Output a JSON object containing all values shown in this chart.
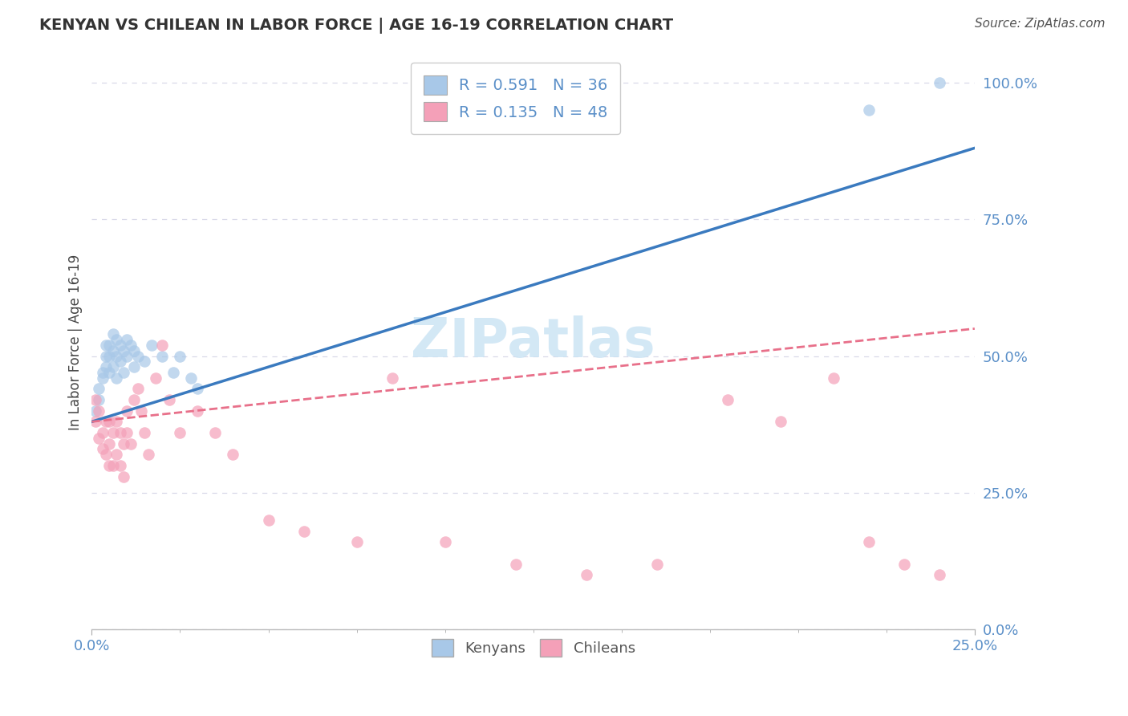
{
  "title": "KENYAN VS CHILEAN IN LABOR FORCE | AGE 16-19 CORRELATION CHART",
  "source_text": "Source: ZipAtlas.com",
  "ylabel": "In Labor Force | Age 16-19",
  "kenyan_color": "#a8c8e8",
  "chilean_color": "#f4a0b8",
  "kenyan_line_color": "#3a7abf",
  "chilean_line_color": "#e8708a",
  "background_color": "#ffffff",
  "tick_color": "#5a8fc8",
  "grid_color": "#d8d8e8",
  "watermark_color": "#cce4f4",
  "xlim": [
    0.0,
    0.25
  ],
  "ylim": [
    0.0,
    1.05
  ],
  "yticks": [
    0.0,
    0.25,
    0.5,
    0.75,
    1.0
  ],
  "ytick_labels": [
    "0.0%",
    "25.0%",
    "50.0%",
    "75.0%",
    "100.0%"
  ],
  "xtick_labels": [
    "0.0%",
    "25.0%"
  ],
  "kenyan_x": [
    0.001,
    0.002,
    0.002,
    0.003,
    0.003,
    0.004,
    0.004,
    0.004,
    0.005,
    0.005,
    0.005,
    0.006,
    0.006,
    0.006,
    0.007,
    0.007,
    0.007,
    0.008,
    0.008,
    0.009,
    0.009,
    0.01,
    0.01,
    0.011,
    0.012,
    0.012,
    0.013,
    0.015,
    0.017,
    0.02,
    0.023,
    0.025,
    0.028,
    0.03,
    0.22,
    0.24
  ],
  "kenyan_y": [
    0.4,
    0.42,
    0.44,
    0.46,
    0.47,
    0.48,
    0.5,
    0.52,
    0.47,
    0.5,
    0.52,
    0.48,
    0.51,
    0.54,
    0.46,
    0.5,
    0.53,
    0.49,
    0.52,
    0.47,
    0.51,
    0.5,
    0.53,
    0.52,
    0.48,
    0.51,
    0.5,
    0.49,
    0.52,
    0.5,
    0.47,
    0.5,
    0.46,
    0.44,
    0.95,
    1.0
  ],
  "chilean_x": [
    0.001,
    0.001,
    0.002,
    0.002,
    0.003,
    0.003,
    0.004,
    0.004,
    0.005,
    0.005,
    0.005,
    0.006,
    0.006,
    0.007,
    0.007,
    0.008,
    0.008,
    0.009,
    0.009,
    0.01,
    0.01,
    0.011,
    0.012,
    0.013,
    0.014,
    0.015,
    0.016,
    0.018,
    0.02,
    0.022,
    0.025,
    0.03,
    0.035,
    0.04,
    0.05,
    0.06,
    0.075,
    0.085,
    0.1,
    0.12,
    0.14,
    0.16,
    0.18,
    0.195,
    0.21,
    0.22,
    0.23,
    0.24
  ],
  "chilean_y": [
    0.38,
    0.42,
    0.35,
    0.4,
    0.33,
    0.36,
    0.32,
    0.38,
    0.3,
    0.34,
    0.38,
    0.3,
    0.36,
    0.32,
    0.38,
    0.3,
    0.36,
    0.28,
    0.34,
    0.36,
    0.4,
    0.34,
    0.42,
    0.44,
    0.4,
    0.36,
    0.32,
    0.46,
    0.52,
    0.42,
    0.36,
    0.4,
    0.36,
    0.32,
    0.2,
    0.18,
    0.16,
    0.46,
    0.16,
    0.12,
    0.1,
    0.12,
    0.42,
    0.38,
    0.46,
    0.16,
    0.12,
    0.1
  ]
}
